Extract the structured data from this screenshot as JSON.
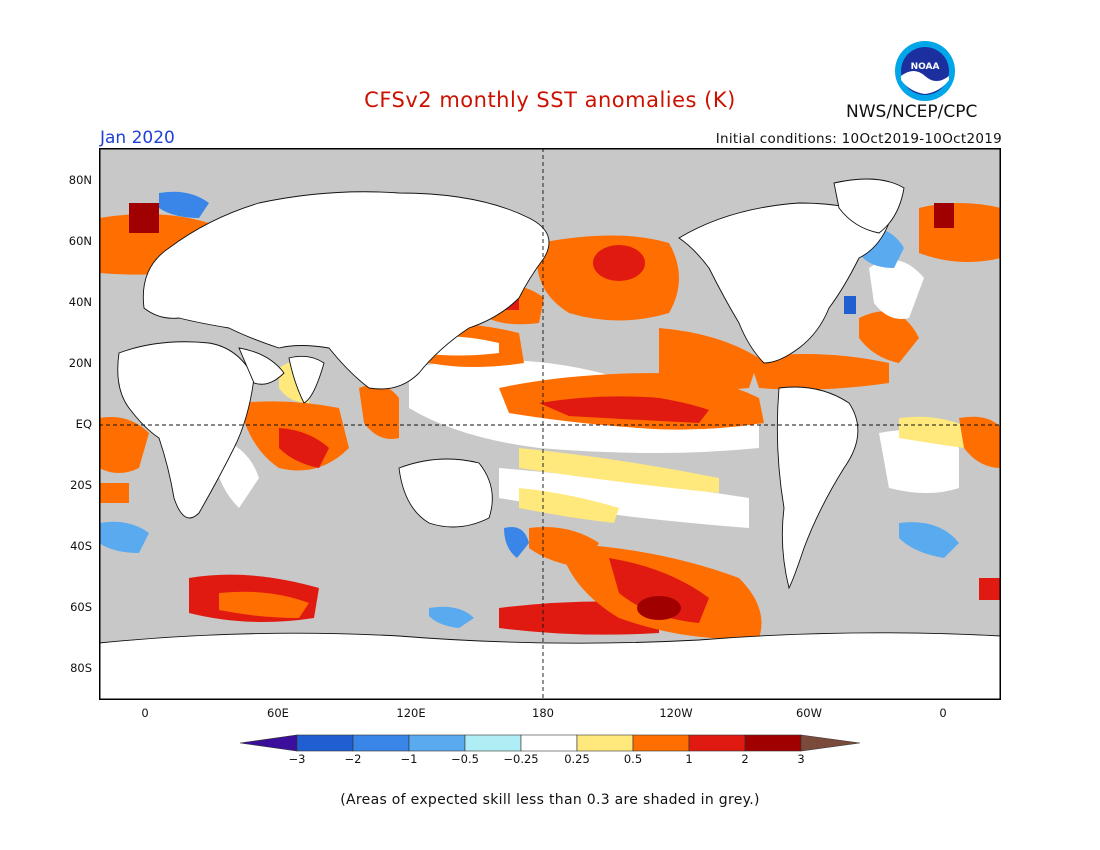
{
  "title": "CFSv2 monthly SST anomalies (K)",
  "month": "Jan 2020",
  "initial_conditions": "Initial conditions: 10Oct2019-10Oct2019",
  "agency": "NWS/NCEP/CPC",
  "logo_text": "NOAA",
  "lat_labels": [
    "80N",
    "60N",
    "40N",
    "20N",
    "EQ",
    "20S",
    "40S",
    "60S",
    "80S"
  ],
  "lon_labels": [
    "0",
    "60E",
    "120E",
    "180",
    "120W",
    "60W",
    "0"
  ],
  "colorbar": {
    "labels": [
      "−3",
      "−2",
      "−1",
      "−0.5",
      "−0.25",
      "0.25",
      "0.5",
      "1",
      "2",
      "3"
    ],
    "colors": [
      "#3b0f9c",
      "#1f5fd1",
      "#3a86e8",
      "#5aaaf0",
      "#b0eef5",
      "#ffffff",
      "#ffe87c",
      "#ff6e00",
      "#e01a10",
      "#a00000",
      "#7a4b3a"
    ]
  },
  "note": "(Areas of expected skill less than 0.3 are shaded in grey.)",
  "palette": {
    "skill_grey": "#c8c8c8",
    "land": "#ffffff",
    "title_red": "#cc1100",
    "month_blue": "#1f3fd6"
  }
}
